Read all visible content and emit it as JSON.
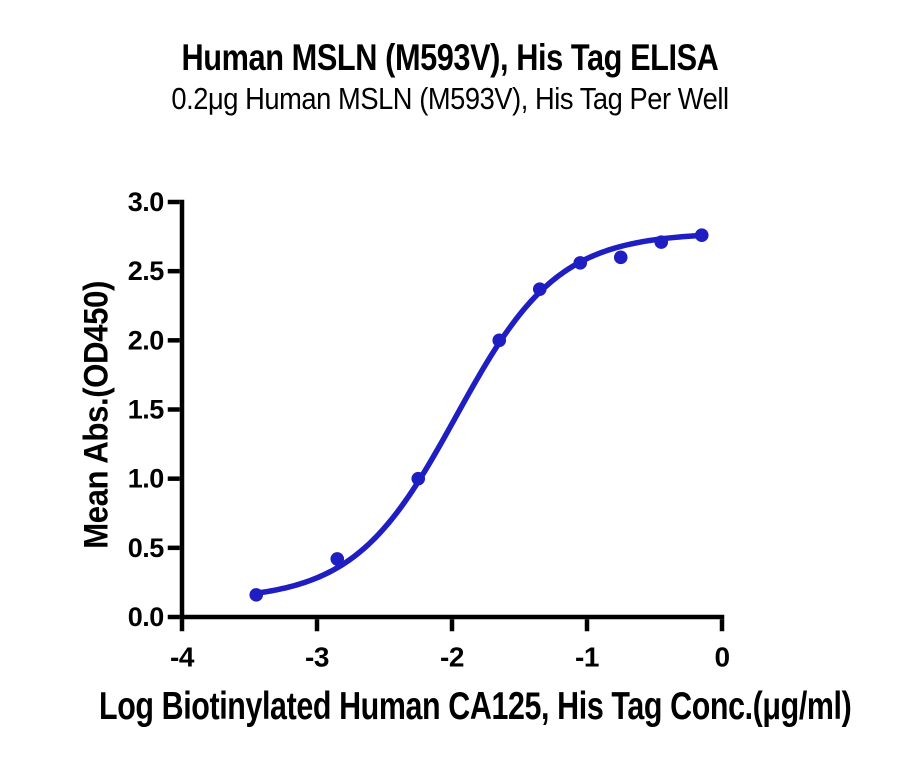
{
  "header": {
    "title": "Human MSLN (M593V), His Tag ELISA",
    "subtitle": "0.2μg Human MSLN (M593V), His Tag Per Well"
  },
  "chart_data": {
    "type": "scatter",
    "title": "Human MSLN (M593V), His Tag ELISA",
    "subtitle": "0.2μg Human MSLN (M593V), His Tag Per Well",
    "xlabel": "Log Biotinylated Human CA125, His Tag Conc.(μg/ml)",
    "ylabel": "Mean Abs.(OD450)",
    "xlim": [
      -4,
      0
    ],
    "ylim": [
      0,
      3
    ],
    "x_ticks": [
      -4,
      -3,
      -2,
      -1,
      0
    ],
    "x_tick_labels": [
      "-4",
      "-3",
      "-2",
      "-1",
      "0"
    ],
    "y_ticks": [
      0,
      0.5,
      1,
      1.5,
      2,
      2.5,
      3
    ],
    "y_tick_labels": [
      "0.0",
      "0.5",
      "1.0",
      "1.5",
      "2.0",
      "2.5",
      "3.0"
    ],
    "points": {
      "x": [
        -3.45,
        -2.85,
        -2.25,
        -1.65,
        -1.35,
        -1.05,
        -0.75,
        -0.45,
        -0.15
      ],
      "y": [
        0.16,
        0.42,
        1.0,
        2.0,
        2.37,
        2.56,
        2.6,
        2.71,
        2.76
      ]
    },
    "fit_curve": {
      "model": "4PL",
      "bottom": 0.12,
      "top": 2.78,
      "logec50": -1.97,
      "hill": 1.15,
      "x_start": -3.45,
      "x_end": -0.15
    },
    "grid": false,
    "legend": null,
    "colors": {
      "curve": "#1e1ec3",
      "points": "#1e1ec3",
      "axis": "#000000",
      "text": "#000000"
    }
  }
}
